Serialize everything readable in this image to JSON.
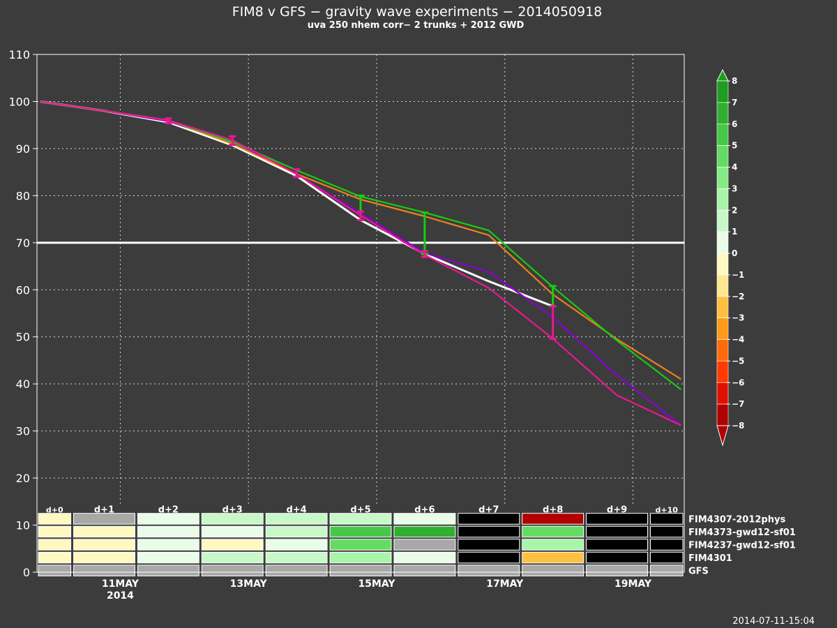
{
  "chart_data": {
    "type": "line",
    "title": "FIM8 v GFS − gravity wave experiments − 2014050918",
    "subtitle": "uva 250 nhem corr− 2 trunks + 2012 GWD",
    "timestamp": "2014-07-11-15:04",
    "x": [
      0,
      1,
      2,
      3,
      4,
      5,
      6,
      7,
      8,
      9,
      10
    ],
    "x_range": [
      -0.05,
      10.05
    ],
    "y_range": [
      0,
      110
    ],
    "y_ticks": [
      0,
      10,
      20,
      30,
      40,
      50,
      60,
      70,
      80,
      90,
      100,
      110
    ],
    "grid": true,
    "reference_line": 70,
    "date_ticks": [
      {
        "x": 1.25,
        "label": "11MAY",
        "sub": "2014"
      },
      {
        "x": 3.25,
        "label": "13MAY",
        "sub": ""
      },
      {
        "x": 5.25,
        "label": "15MAY",
        "sub": ""
      },
      {
        "x": 7.25,
        "label": "17MAY",
        "sub": ""
      },
      {
        "x": 9.25,
        "label": "19MAY",
        "sub": ""
      }
    ],
    "day_labels": [
      "d+0",
      "d+1",
      "d+2",
      "d+3",
      "d+4",
      "d+5",
      "d+6",
      "d+7",
      "d+8",
      "d+9",
      "d+10"
    ],
    "series": [
      {
        "name": "GFS",
        "color": "#ffffff",
        "values": [
          100,
          98,
          95.6,
          90.7,
          84.2,
          74.8,
          67.6,
          61.8,
          56.5,
          null,
          null
        ]
      },
      {
        "name": "FIM4301",
        "color": "#8c00d4",
        "values": [
          100,
          98,
          95.8,
          91.3,
          84.6,
          76.2,
          67.8,
          63.8,
          54.2,
          41.8,
          31.2
        ]
      },
      {
        "name": "FIM4237-gwd12-sf01",
        "color": "#ee8020",
        "values": [
          100,
          98,
          96,
          91,
          84.6,
          79.2,
          75.6,
          71.6,
          59,
          49.5,
          41
        ]
      },
      {
        "name": "FIM4373-gwd12-sf01",
        "color": "#18cc10",
        "values": [
          100,
          98,
          96,
          91.4,
          85.4,
          79.8,
          76.4,
          72.6,
          60.6,
          49.2,
          38.8
        ]
      },
      {
        "name": "FIM4307-2012phys",
        "color": "#ea1890",
        "values": [
          100,
          98,
          96,
          91.8,
          84.6,
          75.8,
          67.4,
          60.4,
          49.6,
          37.6,
          31.2
        ]
      }
    ],
    "error_bars": [
      {
        "x": 2,
        "lo": 95.4,
        "hi": 96.4,
        "color": "#ea1890"
      },
      {
        "x": 3,
        "lo": 90.8,
        "hi": 92.6,
        "color": "#ea1890"
      },
      {
        "x": 4,
        "lo": 84,
        "hi": 85.6,
        "color": "#ea1890"
      },
      {
        "x": 5,
        "lo": 74.8,
        "hi": 80,
        "color": "#18cc10"
      },
      {
        "x": 5,
        "lo": 74.8,
        "hi": 76.6,
        "color": "#ea1890"
      },
      {
        "x": 6,
        "lo": 67.6,
        "hi": 76.4,
        "color": "#18cc10"
      },
      {
        "x": 6,
        "lo": 67,
        "hi": 68.2,
        "color": "#ea1890"
      },
      {
        "x": 8,
        "lo": 56.5,
        "hi": 60.8,
        "color": "#18cc10"
      },
      {
        "x": 8,
        "lo": 49.6,
        "hi": 56.5,
        "color": "#ea1890"
      }
    ],
    "significance": {
      "rows": [
        {
          "label": "FIM4307-2012phys",
          "color": "#ea1890",
          "levels": [
            -1,
            "na",
            1,
            2,
            2,
            2,
            1,
            "ns",
            -8,
            "ns",
            "ns"
          ]
        },
        {
          "label": "FIM4373-gwd12-sf01",
          "color": "#18cc10",
          "levels": [
            -1,
            -1,
            1,
            1,
            2,
            6,
            7,
            "ns",
            5,
            "ns",
            "ns"
          ]
        },
        {
          "label": "FIM4237-gwd12-sf01",
          "color": "#ee8020",
          "levels": [
            -1,
            -1,
            1,
            -1,
            1,
            5,
            "na",
            "ns",
            3,
            "ns",
            "ns"
          ]
        },
        {
          "label": "FIM4301",
          "color": "#8c00d4",
          "levels": [
            -1,
            -1,
            1,
            2,
            2,
            3,
            1,
            "ns",
            -3,
            "ns",
            "ns"
          ]
        },
        {
          "label": "GFS",
          "color": "#ffffff",
          "levels": [
            "na",
            "na",
            "na",
            "na",
            "na",
            "na",
            "na",
            "na",
            "na",
            "na",
            "na"
          ]
        }
      ],
      "colorbar_labels": [
        "8",
        "7",
        "6",
        "5",
        "4",
        "3",
        "2",
        "1",
        "0",
        "−1",
        "−2",
        "−3",
        "−4",
        "−5",
        "−6",
        "−7",
        "−8"
      ],
      "colorbar_colors": {
        "8": "#1e9e1e",
        "7": "#30b030",
        "6": "#48c848",
        "5": "#64dc64",
        "4": "#84ec84",
        "3": "#a8f4a8",
        "2": "#c8f8c8",
        "1": "#e8fce8",
        "-1": "#fff8c0",
        "-2": "#ffe890",
        "-3": "#ffc040",
        "-4": "#ff9a1a",
        "-5": "#ff6a0a",
        "-6": "#ff3a00",
        "-7": "#e01000",
        "-8": "#b00000",
        "ns": "#000000",
        "na": "#a8a8a8"
      }
    }
  }
}
